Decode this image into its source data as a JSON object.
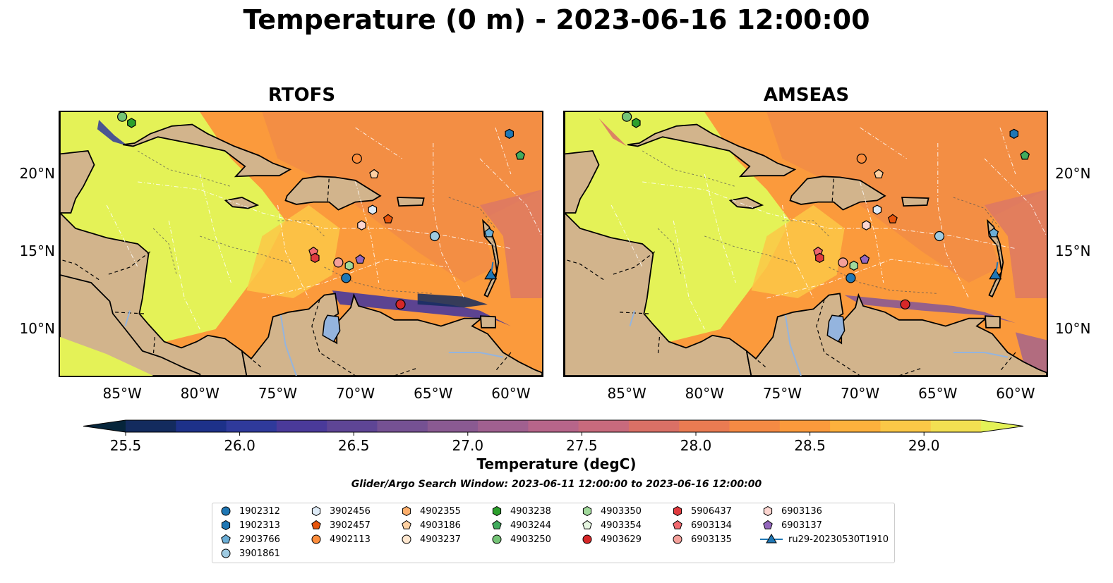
{
  "title": "Temperature (0 m) - 2023-06-16 12:00:00",
  "panels": [
    {
      "id": "rtofs",
      "title": "RTOFS"
    },
    {
      "id": "amseas",
      "title": "AMSEAS"
    }
  ],
  "map_extent": {
    "lon": [
      -89,
      -58
    ],
    "lat": [
      7,
      24
    ]
  },
  "lon_ticks": [
    "85°W",
    "80°W",
    "75°W",
    "70°W",
    "65°W",
    "60°W"
  ],
  "lat_ticks": [
    "20°N",
    "15°N",
    "10°N"
  ],
  "colorbar": {
    "title": "Temperature (degC)",
    "ticks": [
      "25.5",
      "26.0",
      "26.5",
      "27.0",
      "27.5",
      "28.0",
      "28.5",
      "29.0"
    ],
    "range": [
      25.5,
      29.25
    ],
    "extend": "both",
    "colors": [
      "#06253b",
      "#132b5e",
      "#1d3189",
      "#2f3a9b",
      "#4a3a9a",
      "#5e4595",
      "#755193",
      "#8a5a92",
      "#a06090",
      "#b7658a",
      "#c86a7d",
      "#da7066",
      "#ea7b52",
      "#f58a44",
      "#fb9a3c",
      "#fdb13d",
      "#fbc847",
      "#f2e052",
      "#e4f257"
    ]
  },
  "search_window": "Glider/Argo Search Window: 2023-06-11 12:00:00 to 2023-06-16 12:00:00",
  "platforms": [
    {
      "id": "1902312",
      "marker": "circle",
      "color": "#1f77b4"
    },
    {
      "id": "1902313",
      "marker": "hexagon",
      "color": "#1f77b4"
    },
    {
      "id": "2903766",
      "marker": "pentagon",
      "color": "#6baed6"
    },
    {
      "id": "3901861",
      "marker": "circle",
      "color": "#9ecae1"
    },
    {
      "id": "3902456",
      "marker": "hexagon",
      "color": "#deebf7"
    },
    {
      "id": "3902457",
      "marker": "pentagon",
      "color": "#e6550d"
    },
    {
      "id": "4902113",
      "marker": "circle",
      "color": "#fd8d3c"
    },
    {
      "id": "4902355",
      "marker": "hexagon",
      "color": "#fdae6b"
    },
    {
      "id": "4903186",
      "marker": "pentagon",
      "color": "#fdd0a2"
    },
    {
      "id": "4903237",
      "marker": "circle",
      "color": "#fee6ce"
    },
    {
      "id": "4903238",
      "marker": "hexagon",
      "color": "#2ca02c"
    },
    {
      "id": "4903244",
      "marker": "pentagon",
      "color": "#41ab5d"
    },
    {
      "id": "4903250",
      "marker": "circle",
      "color": "#74c476"
    },
    {
      "id": "4903350",
      "marker": "hexagon",
      "color": "#a1d99b"
    },
    {
      "id": "4903354",
      "marker": "pentagon",
      "color": "#e5f5e0"
    },
    {
      "id": "4903629",
      "marker": "circle",
      "color": "#d62728"
    },
    {
      "id": "5906437",
      "marker": "hexagon",
      "color": "#e03a3e"
    },
    {
      "id": "6903134",
      "marker": "pentagon",
      "color": "#f1696f"
    },
    {
      "id": "6903135",
      "marker": "circle",
      "color": "#f4a09a"
    },
    {
      "id": "6903136",
      "marker": "hexagon",
      "color": "#fcd5d0"
    },
    {
      "id": "6903137",
      "marker": "pentagon",
      "color": "#9467bd"
    },
    {
      "id": "ru29-20230530T1910",
      "marker": "triangle",
      "color": "#1f77b4",
      "line": true
    }
  ],
  "platform_positions": [
    {
      "id": "1902313",
      "lon": -60.1,
      "lat": 22.6
    },
    {
      "id": "4903244",
      "lon": -59.4,
      "lat": 21.2
    },
    {
      "id": "4903250",
      "lon": -85.0,
      "lat": 23.7
    },
    {
      "id": "4903238",
      "lon": -84.4,
      "lat": 23.3
    },
    {
      "id": "4902113",
      "lon": -69.9,
      "lat": 21.0
    },
    {
      "id": "4903186",
      "lon": -68.8,
      "lat": 20.0
    },
    {
      "id": "3902456",
      "lon": -68.9,
      "lat": 17.7
    },
    {
      "id": "3902457",
      "lon": -67.9,
      "lat": 17.1
    },
    {
      "id": "6903136",
      "lon": -69.6,
      "lat": 16.7
    },
    {
      "id": "3901861",
      "lon": -64.9,
      "lat": 16.0
    },
    {
      "id": "2903766",
      "lon": -61.4,
      "lat": 16.2
    },
    {
      "id": "6903134",
      "lon": -72.7,
      "lat": 15.0
    },
    {
      "id": "5906437",
      "lon": -72.6,
      "lat": 14.6
    },
    {
      "id": "6903135",
      "lon": -71.1,
      "lat": 14.3
    },
    {
      "id": "4903350",
      "lon": -70.4,
      "lat": 14.1
    },
    {
      "id": "6903137",
      "lon": -69.7,
      "lat": 14.5
    },
    {
      "id": "1902312",
      "lon": -70.6,
      "lat": 13.3
    },
    {
      "id": "4903629",
      "lon": -67.1,
      "lat": 11.6
    },
    {
      "id": "ru29-20230530T1910",
      "lon": -61.3,
      "lat": 13.5
    }
  ]
}
